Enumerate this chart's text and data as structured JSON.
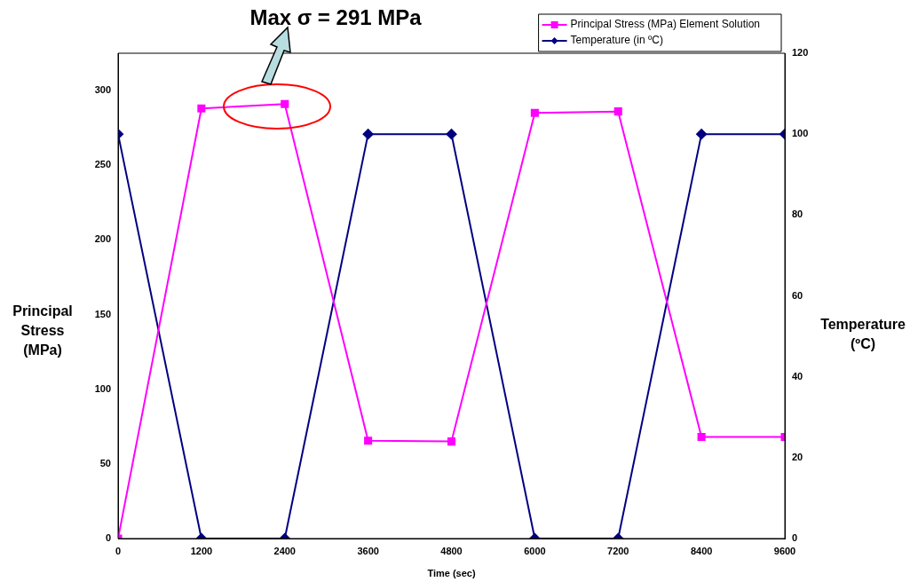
{
  "chart_data": {
    "type": "line",
    "xlabel": "Time (sec)",
    "ylabel": "Principal Stress (MPa)",
    "y2label": "Temperature (ºC)",
    "x": [
      0,
      1200,
      2400,
      3600,
      4800,
      6000,
      7200,
      8400,
      9600
    ],
    "xlim": [
      0,
      9600
    ],
    "xticks": [
      0,
      1200,
      2400,
      3600,
      4800,
      6000,
      7200,
      8400,
      9600
    ],
    "ylim": [
      0,
      325
    ],
    "yticks": [
      0,
      50,
      100,
      150,
      200,
      250,
      300
    ],
    "y2lim": [
      0,
      120
    ],
    "y2ticks": [
      0,
      20,
      40,
      60,
      80,
      100,
      120
    ],
    "series": [
      {
        "name": "Principal Stress (MPa) Element Solution",
        "color": "#ff00ff",
        "marker": "square",
        "values": [
          0,
          288,
          291,
          65.5,
          65,
          285,
          286,
          68,
          68
        ]
      },
      {
        "name": "Temperature (in ºC)",
        "color": "#000080",
        "marker": "diamond",
        "axis": "y2",
        "values": [
          100,
          0,
          0,
          100,
          100,
          0,
          0,
          100,
          100
        ]
      }
    ],
    "annotations": [
      "Max σ = 291 MPa"
    ],
    "legend": "top right",
    "grid": false
  }
}
